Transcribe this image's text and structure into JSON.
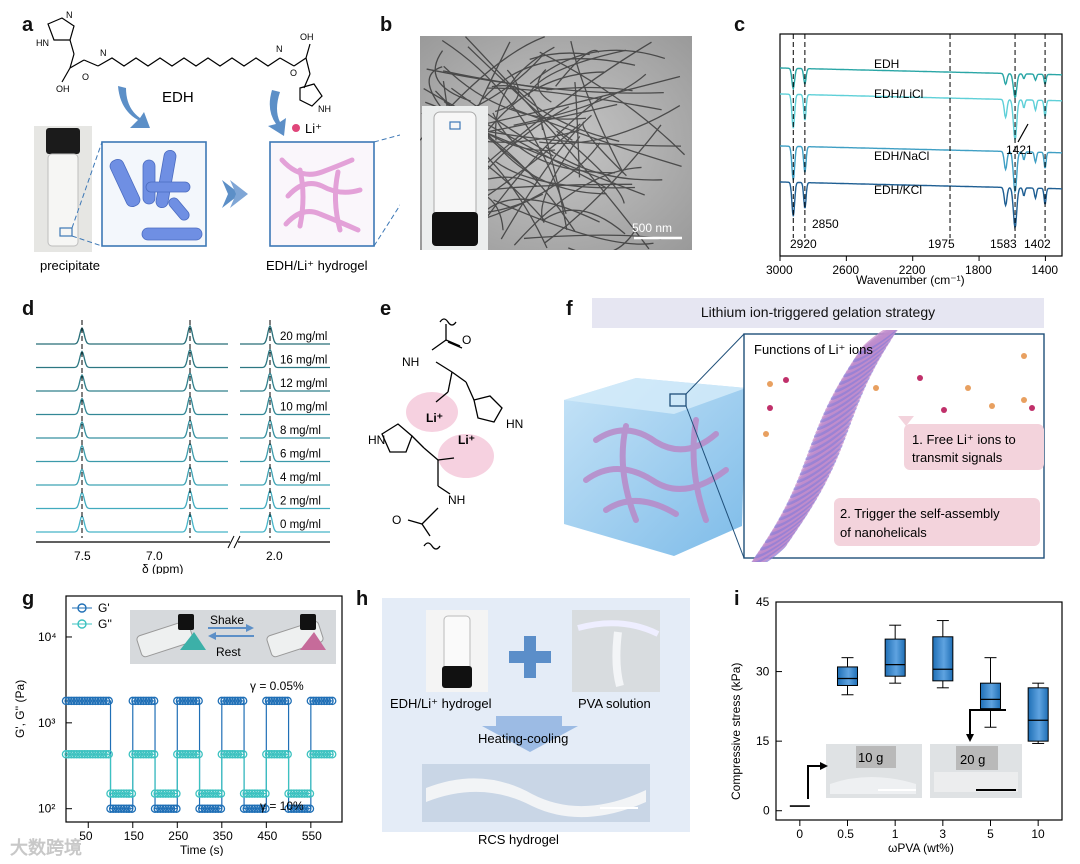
{
  "panels": {
    "a": "a",
    "b": "b",
    "c": "c",
    "d": "d",
    "e": "e",
    "f": "f",
    "g": "g",
    "h": "h",
    "i": "i"
  },
  "colors": {
    "blue": "#5b86d6",
    "pink": "#e6a8d4",
    "dark": "#1f4f79",
    "teal": "#2fb7b8",
    "frame": "#3d78b6"
  },
  "a": {
    "molecule": "EDH",
    "ion": "Li⁺",
    "precipitate": "precipitate",
    "hydrogel": "EDH/Li⁺ hydrogel"
  },
  "b": {
    "scale": "500 nm"
  },
  "c": {
    "chart_data": {
      "type": "line",
      "title": "",
      "xlabel": "Wavenumber (cm⁻¹)",
      "ylabel": "",
      "xlim": [
        3000,
        1300
      ],
      "xticks": [
        "3000",
        "2600",
        "2200",
        "1800",
        "1400"
      ],
      "series": [
        {
          "name": "EDH"
        },
        {
          "name": "EDH/LiCl"
        },
        {
          "name": "EDH/NaCl"
        },
        {
          "name": "EDH/KCl"
        }
      ],
      "annotations": [
        "2920",
        "2850",
        "1975",
        "1583",
        "1402",
        "1421"
      ]
    }
  },
  "d": {
    "chart_data": {
      "type": "line",
      "xlabel": "δ (ppm)",
      "xticks": [
        "7.5",
        "7.0",
        "2.0"
      ],
      "series": [
        {
          "name": "20 mg/ml"
        },
        {
          "name": "16 mg/ml"
        },
        {
          "name": "12 mg/ml"
        },
        {
          "name": "10 mg/ml"
        },
        {
          "name": "8 mg/ml"
        },
        {
          "name": "6 mg/ml"
        },
        {
          "name": "4 mg/ml"
        },
        {
          "name": "2 mg/ml"
        },
        {
          "name": "0 mg/ml"
        }
      ]
    }
  },
  "e": {
    "li1": "Li⁺",
    "li2": "Li⁺",
    "hn": "HN",
    "nh1": "NH",
    "nh2": "NH",
    "hn2": "HN",
    "o1": "O",
    "o2": "O"
  },
  "f": {
    "title": "Lithium ion-triggered gelation strategy",
    "functions": "Functions of Li⁺ ions",
    "func1_line1": "1. Free Li⁺ ions to",
    "func1_line2": "transmit signals",
    "func2_line1": "2. Trigger the self-assembly",
    "func2_line2": "of nanohelicals"
  },
  "g": {
    "chart_data": {
      "type": "scatter",
      "xlabel": "Time (s)",
      "ylabel": "G', G'' (Pa)",
      "yscale": "log",
      "ylim": [
        70,
        30000
      ],
      "xlim": [
        0,
        620
      ],
      "xticks": [
        "50",
        "150",
        "250",
        "350",
        "450",
        "550"
      ],
      "yticks": [
        "10²",
        "10³",
        "10⁴"
      ],
      "steps": [
        [
          0,
          100,
          "high"
        ],
        [
          100,
          150,
          "low"
        ],
        [
          150,
          200,
          "high"
        ],
        [
          200,
          250,
          "low"
        ],
        [
          250,
          300,
          "high"
        ],
        [
          300,
          350,
          "low"
        ],
        [
          350,
          400,
          "high"
        ],
        [
          400,
          450,
          "low"
        ],
        [
          450,
          500,
          "high"
        ],
        [
          500,
          550,
          "low"
        ],
        [
          550,
          600,
          "high"
        ]
      ],
      "series": [
        {
          "name": "G'",
          "high": 1800,
          "low": 100
        },
        {
          "name": "G''",
          "high": 430,
          "low": 150
        }
      ],
      "annotations": [
        "γ = 0.05%",
        "γ = 10%"
      ],
      "inset": {
        "shake": "Shake",
        "rest": "Rest"
      }
    }
  },
  "h": {
    "gel": "EDH/Li⁺ hydrogel",
    "pva": "PVA solution",
    "process": "Heating-cooling",
    "result": "RCS hydrogel"
  },
  "i": {
    "chart_data": {
      "type": "box",
      "xlabel": "ωPVA (wt%)",
      "ylabel": "Compressive stress (kPa)",
      "ylim": [
        -2,
        45
      ],
      "yticks": [
        "0",
        "15",
        "30",
        "45"
      ],
      "categories": [
        "0",
        "0.5",
        "1",
        "3",
        "5",
        "10"
      ],
      "boxes": [
        {
          "cat": "0",
          "min": 1,
          "q1": 1,
          "median": 1,
          "q3": 1,
          "max": 1
        },
        {
          "cat": "0.5",
          "min": 25,
          "q1": 27,
          "median": 28.5,
          "q3": 31,
          "max": 33
        },
        {
          "cat": "1",
          "min": 27.5,
          "q1": 29,
          "median": 31.5,
          "q3": 37,
          "max": 40
        },
        {
          "cat": "3",
          "min": 26.5,
          "q1": 28,
          "median": 30.5,
          "q3": 37.5,
          "max": 41
        },
        {
          "cat": "5",
          "min": 18,
          "q1": 22,
          "median": 24,
          "q3": 27.5,
          "max": 33
        },
        {
          "cat": "10",
          "min": 14.5,
          "q1": 15,
          "median": 19.5,
          "q3": 26.5,
          "max": 27.5
        }
      ],
      "inset1": "10 g",
      "inset2": "20 g"
    }
  },
  "watermark": "大数跨境"
}
